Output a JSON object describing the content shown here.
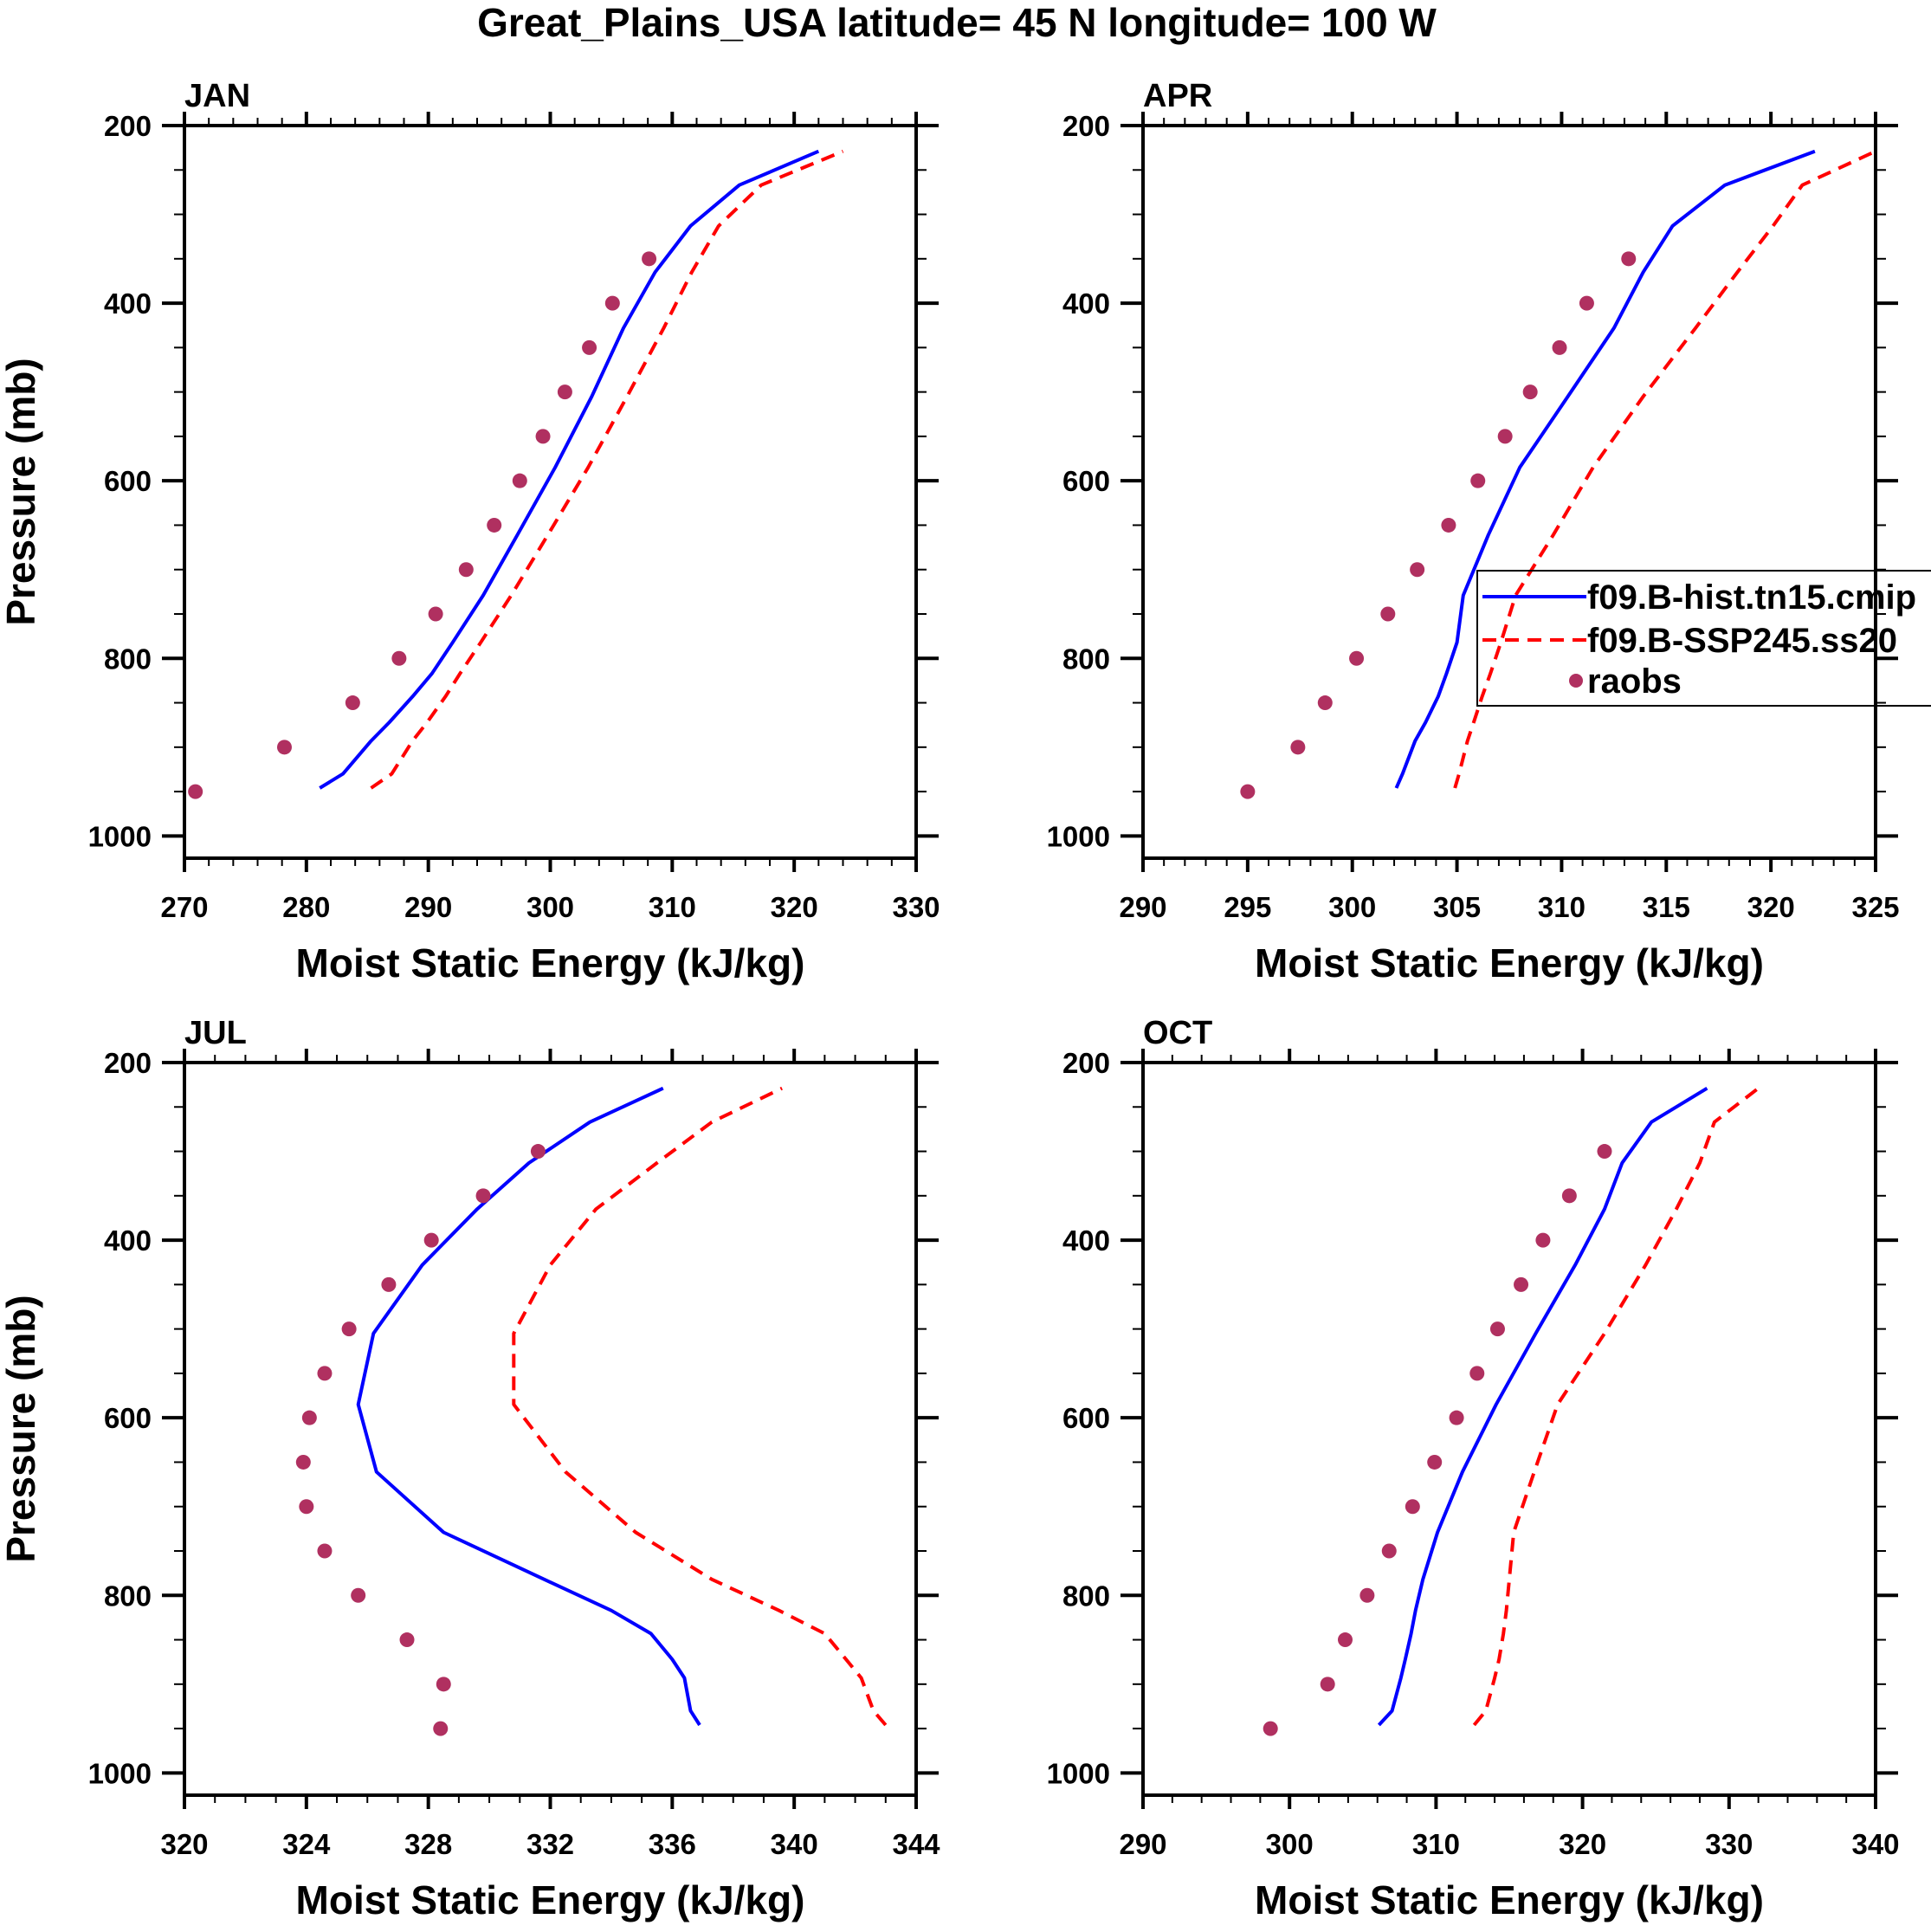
{
  "title": "Great_Plains_USA  latitude= 45 N longitude= 100 W",
  "legend": {
    "placement": "inside APR panel, right-middle (clipped)",
    "entries": [
      {
        "label": "f09.B-hist.tn15.cmip",
        "style": "solid",
        "color": "#0000ff"
      },
      {
        "label": "f09.B-SSP245.ss20",
        "style": "dashed",
        "color": "#ff0000"
      },
      {
        "label": "raobs",
        "style": "marker",
        "color": "#b03060"
      }
    ]
  },
  "chart_data": [
    {
      "type": "line",
      "title": "JAN",
      "xlabel": "Moist Static Energy (kJ/kg)",
      "ylabel": "Pressure (mb)",
      "xlim": [
        270,
        330
      ],
      "xticks": [
        270,
        280,
        290,
        300,
        310,
        320,
        330
      ],
      "xminor": 2,
      "ylim": [
        200,
        1025
      ],
      "yticks": [
        200,
        400,
        600,
        800,
        1000
      ],
      "yinverted": true,
      "model_pressure": [
        946,
        930,
        893,
        872,
        843,
        817,
        782,
        729,
        661,
        585,
        505,
        428,
        365,
        313,
        267,
        229
      ],
      "obs_pressure": [
        950,
        900,
        850,
        800,
        750,
        700,
        650,
        600,
        550,
        500,
        450,
        400,
        350
      ],
      "series": [
        {
          "name": "f09.B-hist.tn15.cmip",
          "values": [
            281.1,
            283.0,
            285.3,
            286.8,
            288.7,
            290.3,
            292.0,
            294.5,
            297.3,
            300.4,
            303.4,
            306.0,
            308.6,
            311.5,
            315.5,
            322.0
          ]
        },
        {
          "name": "f09.B-SSP245.ss20",
          "values": [
            285.3,
            287.0,
            288.7,
            289.9,
            291.4,
            292.6,
            294.3,
            296.8,
            299.8,
            303.1,
            306.3,
            309.3,
            311.6,
            313.8,
            317.3,
            324.0
          ]
        },
        {
          "name": "raobs",
          "values": [
            270.9,
            278.2,
            283.8,
            287.6,
            290.6,
            293.1,
            295.4,
            297.5,
            299.4,
            301.2,
            303.2,
            305.1,
            308.1
          ]
        }
      ]
    },
    {
      "type": "line",
      "title": "APR",
      "xlabel": "Moist Static Energy (kJ/kg)",
      "ylabel": "",
      "xlim": [
        290,
        325
      ],
      "xticks": [
        290,
        295,
        300,
        305,
        310,
        315,
        320,
        325
      ],
      "xminor": 1,
      "ylim": [
        200,
        1025
      ],
      "yticks": [
        200,
        400,
        600,
        800,
        1000
      ],
      "yinverted": true,
      "model_pressure": [
        946,
        930,
        893,
        872,
        843,
        817,
        782,
        729,
        661,
        585,
        505,
        428,
        365,
        313,
        267,
        229
      ],
      "obs_pressure": [
        950,
        900,
        850,
        800,
        750,
        700,
        650,
        600,
        550,
        500,
        450,
        400,
        350
      ],
      "series": [
        {
          "name": "f09.B-hist.tn15.cmip",
          "values": [
            302.1,
            302.4,
            303.0,
            303.5,
            304.1,
            304.5,
            305.0,
            305.3,
            306.5,
            308.0,
            310.3,
            312.5,
            313.9,
            315.3,
            317.8,
            322.1
          ]
        },
        {
          "name": "f09.B-SSP245.ss20",
          "values": [
            304.9,
            305.1,
            305.5,
            305.8,
            306.2,
            306.6,
            307.1,
            307.8,
            309.6,
            311.5,
            313.9,
            316.4,
            318.4,
            320.1,
            321.5,
            325.0
          ]
        },
        {
          "name": "raobs",
          "values": [
            295.0,
            297.4,
            298.7,
            300.2,
            301.7,
            303.1,
            304.6,
            306.0,
            307.3,
            308.5,
            309.9,
            311.2,
            313.2
          ]
        }
      ]
    },
    {
      "type": "line",
      "title": "JUL",
      "xlabel": "Moist Static Energy (kJ/kg)",
      "ylabel": "Pressure (mb)",
      "xlim": [
        320,
        344
      ],
      "xticks": [
        320,
        324,
        328,
        332,
        336,
        340,
        344
      ],
      "xminor": 1,
      "ylim": [
        200,
        1025
      ],
      "yticks": [
        200,
        400,
        600,
        800,
        1000
      ],
      "yinverted": true,
      "model_pressure": [
        946,
        930,
        893,
        872,
        843,
        817,
        782,
        729,
        661,
        585,
        505,
        428,
        365,
        313,
        267,
        229
      ],
      "obs_pressure": [
        950,
        900,
        850,
        800,
        750,
        700,
        650,
        600,
        550,
        500,
        450,
        400,
        350,
        300
      ],
      "series": [
        {
          "name": "f09.B-hist.tn15.cmip",
          "values": [
            336.9,
            336.6,
            336.4,
            336.0,
            335.3,
            334.0,
            331.8,
            328.5,
            326.3,
            325.7,
            326.2,
            327.8,
            329.6,
            331.3,
            333.3,
            335.7
          ]
        },
        {
          "name": "f09.B-SSP245.ss20",
          "values": [
            343.0,
            342.6,
            342.2,
            341.7,
            341.0,
            339.5,
            337.3,
            334.8,
            332.5,
            330.8,
            330.8,
            332.0,
            333.5,
            335.5,
            337.3,
            339.6
          ]
        },
        {
          "name": "raobs",
          "values": [
            328.4,
            328.5,
            327.3,
            325.7,
            324.6,
            324.0,
            323.9,
            324.1,
            324.6,
            325.4,
            326.7,
            328.1,
            329.8,
            331.6
          ]
        }
      ]
    },
    {
      "type": "line",
      "title": "OCT",
      "xlabel": "Moist Static Energy (kJ/kg)",
      "ylabel": "",
      "xlim": [
        290,
        340
      ],
      "xticks": [
        290,
        300,
        310,
        320,
        330,
        340
      ],
      "xminor": 2,
      "ylim": [
        200,
        1025
      ],
      "yticks": [
        200,
        400,
        600,
        800,
        1000
      ],
      "yinverted": true,
      "model_pressure": [
        946,
        930,
        893,
        872,
        843,
        817,
        782,
        729,
        661,
        585,
        505,
        428,
        365,
        313,
        267,
        229
      ],
      "obs_pressure": [
        950,
        900,
        850,
        800,
        750,
        700,
        650,
        600,
        550,
        500,
        450,
        400,
        350,
        300
      ],
      "series": [
        {
          "name": "f09.B-hist.tn15.cmip",
          "values": [
            306.1,
            307.0,
            307.6,
            307.9,
            308.3,
            308.6,
            309.1,
            310.1,
            311.8,
            314.1,
            316.8,
            319.5,
            321.5,
            322.7,
            324.7,
            328.5
          ]
        },
        {
          "name": "f09.B-SSP245.ss20",
          "values": [
            312.6,
            313.4,
            314.0,
            314.3,
            314.6,
            314.8,
            315.0,
            315.3,
            316.7,
            318.3,
            321.5,
            324.3,
            326.4,
            328.0,
            329.0,
            332.0
          ]
        },
        {
          "name": "raobs",
          "values": [
            298.7,
            302.6,
            303.8,
            305.3,
            306.8,
            308.4,
            309.9,
            311.4,
            312.8,
            314.2,
            315.8,
            317.3,
            319.1,
            321.5
          ]
        }
      ]
    }
  ]
}
